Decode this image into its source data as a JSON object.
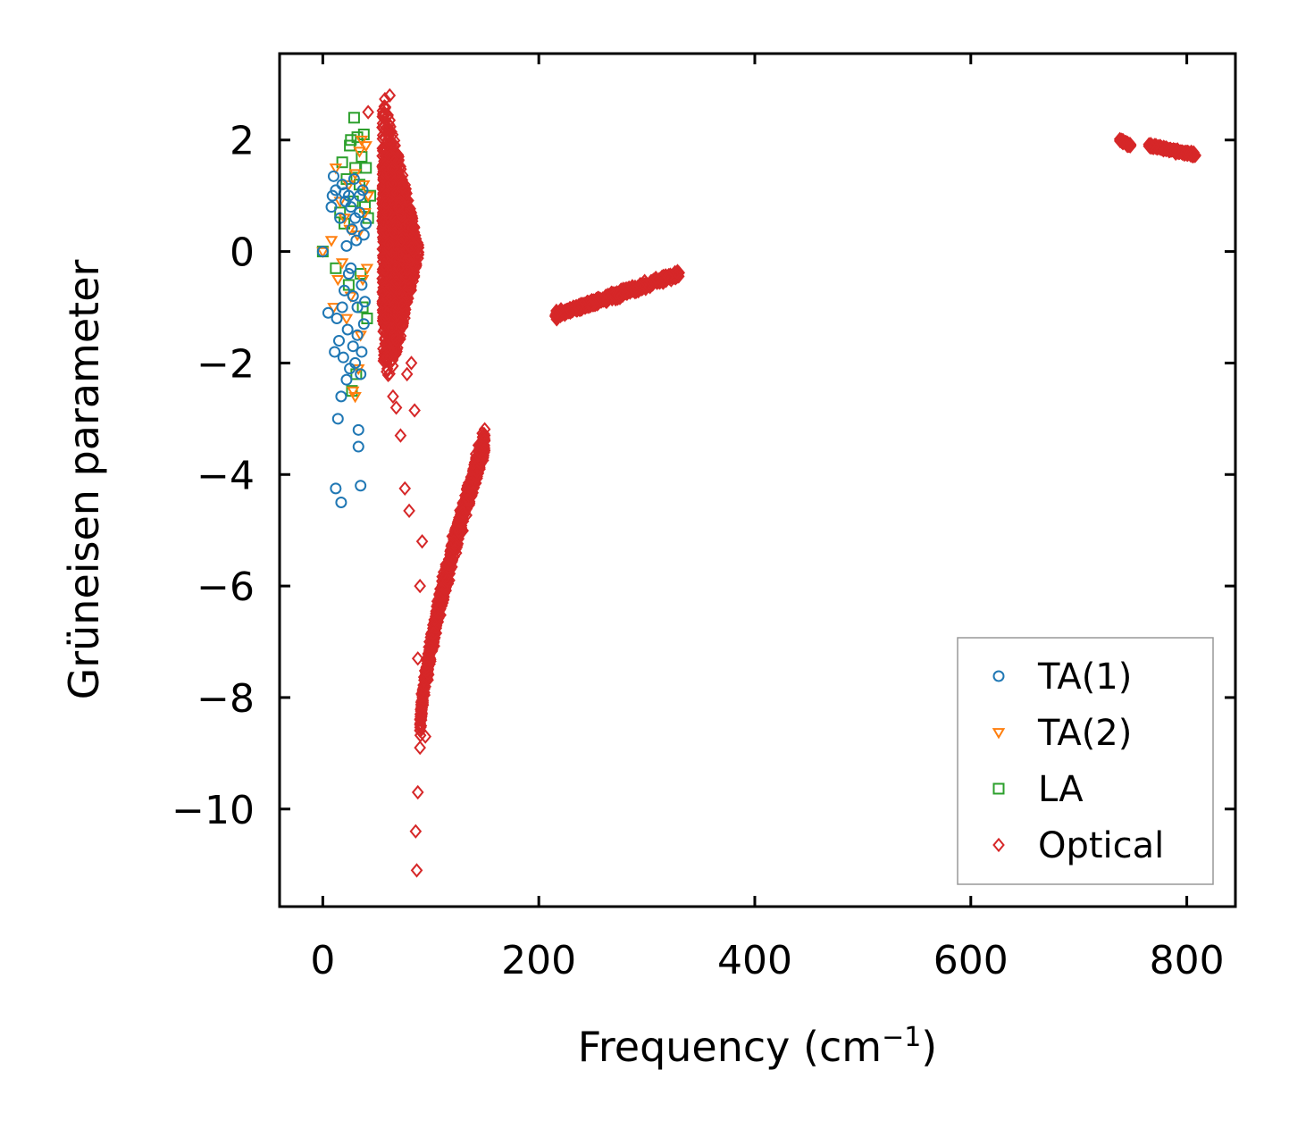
{
  "chart_data": {
    "type": "scatter",
    "title": "",
    "xlabel": "Frequency (cm",
    "xlabel_sup": "−1",
    "xlabel_close": ")",
    "ylabel": "Grüneisen parameter",
    "xlim": [
      -40,
      845
    ],
    "ylim": [
      -11.75,
      3.55
    ],
    "xticks": [
      {
        "value": 0,
        "label": "0"
      },
      {
        "value": 200,
        "label": "200"
      },
      {
        "value": 400,
        "label": "400"
      },
      {
        "value": 600,
        "label": "600"
      },
      {
        "value": 800,
        "label": "800"
      }
    ],
    "yticks": [
      {
        "value": 2,
        "label": "2"
      },
      {
        "value": 0,
        "label": "0"
      },
      {
        "value": -2,
        "label": "−2"
      },
      {
        "value": -4,
        "label": "−4"
      },
      {
        "value": -6,
        "label": "−6"
      },
      {
        "value": -8,
        "label": "−8"
      },
      {
        "value": -10,
        "label": "−10"
      }
    ],
    "legend_position": "lower-right",
    "series": [
      {
        "name": "TA(1)",
        "marker": "circle",
        "color": "#1f77b4",
        "points": [
          [
            0,
            0
          ],
          [
            5,
            -1.1
          ],
          [
            8,
            0.8
          ],
          [
            9,
            1.0
          ],
          [
            10,
            1.35
          ],
          [
            11,
            -1.8
          ],
          [
            12,
            -4.25
          ],
          [
            12,
            1.1
          ],
          [
            13,
            -1.2
          ],
          [
            14,
            -3.0
          ],
          [
            15,
            -1.6
          ],
          [
            16,
            0.6
          ],
          [
            17,
            -2.6
          ],
          [
            17,
            -4.5
          ],
          [
            18,
            1.2
          ],
          [
            19,
            -1.9
          ],
          [
            20,
            -0.7
          ],
          [
            21,
            0.9
          ],
          [
            22,
            -2.3
          ],
          [
            23,
            -1.4
          ],
          [
            24,
            1.0
          ],
          [
            25,
            -2.1
          ],
          [
            26,
            -0.3
          ],
          [
            27,
            0.4
          ],
          [
            28,
            -1.7
          ],
          [
            29,
            1.3
          ],
          [
            30,
            -2.0
          ],
          [
            31,
            0.2
          ],
          [
            32,
            -1.0
          ],
          [
            33,
            -3.2
          ],
          [
            33,
            -3.5
          ],
          [
            34,
            0.7
          ],
          [
            35,
            -4.2
          ],
          [
            35,
            -2.2
          ],
          [
            36,
            -0.6
          ],
          [
            37,
            1.1
          ],
          [
            38,
            -1.3
          ],
          [
            38,
            0.3
          ],
          [
            39,
            -0.9
          ],
          [
            40,
            0.5
          ],
          [
            22,
            0.1
          ],
          [
            24,
            -0.4
          ],
          [
            26,
            0.8
          ],
          [
            28,
            -0.8
          ],
          [
            30,
            0.6
          ],
          [
            32,
            -1.5
          ],
          [
            36,
            -1.8
          ],
          [
            34,
            1.0
          ],
          [
            20,
            1.05
          ],
          [
            18,
            -1.0
          ]
        ]
      },
      {
        "name": "TA(2)",
        "marker": "triangle-down",
        "color": "#ff7f0e",
        "points": [
          [
            0,
            0
          ],
          [
            8,
            0.2
          ],
          [
            10,
            -1.0
          ],
          [
            12,
            1.5
          ],
          [
            14,
            -0.5
          ],
          [
            16,
            0.9
          ],
          [
            18,
            -0.2
          ],
          [
            20,
            0.6
          ],
          [
            22,
            -1.2
          ],
          [
            24,
            1.2
          ],
          [
            26,
            -0.8
          ],
          [
            28,
            -2.5
          ],
          [
            30,
            -2.6
          ],
          [
            30,
            1.4
          ],
          [
            32,
            0.3
          ],
          [
            34,
            1.8
          ],
          [
            35,
            -1.5
          ],
          [
            36,
            2.0
          ],
          [
            37,
            -0.5
          ],
          [
            38,
            1.2
          ],
          [
            39,
            0.7
          ],
          [
            40,
            1.9
          ],
          [
            41,
            -0.3
          ],
          [
            42,
            1.0
          ],
          [
            33,
            -2.1
          ],
          [
            25,
            0.4
          ]
        ]
      },
      {
        "name": "LA",
        "marker": "square",
        "color": "#2ca02c",
        "points": [
          [
            0,
            0
          ],
          [
            12,
            -0.3
          ],
          [
            16,
            0.7
          ],
          [
            18,
            1.6
          ],
          [
            20,
            0.5
          ],
          [
            22,
            1.3
          ],
          [
            24,
            -0.6
          ],
          [
            25,
            1.9
          ],
          [
            26,
            2.0
          ],
          [
            28,
            0.9
          ],
          [
            29,
            2.4
          ],
          [
            30,
            1.5
          ],
          [
            32,
            2.05
          ],
          [
            34,
            1.2
          ],
          [
            35,
            -0.4
          ],
          [
            36,
            1.7
          ],
          [
            38,
            2.1
          ],
          [
            39,
            0.8
          ],
          [
            40,
            1.5
          ],
          [
            41,
            -1.2
          ],
          [
            42,
            0.6
          ],
          [
            44,
            1.0
          ],
          [
            37,
            -1.0
          ],
          [
            31,
            -2.2
          ],
          [
            27,
            -2.5
          ]
        ]
      },
      {
        "name": "Optical",
        "marker": "diamond",
        "color": "#d62728",
        "clusters": [
          {
            "type": "band",
            "x": [
              40,
              90
            ],
            "y": [
              -2.4,
              2.7
            ],
            "density": 1400
          },
          {
            "type": "line",
            "x": [
              [
                90,
                -8.6
              ],
              [
                150,
                -3.4
              ]
            ],
            "spread": 0.35,
            "density": 900
          },
          {
            "type": "line",
            "x": [
              [
                215,
                -1.15
              ],
              [
                330,
                -0.4
              ]
            ],
            "spread": 0.09,
            "density": 500
          },
          {
            "type": "line",
            "x": [
              [
                738,
                2.0
              ],
              [
                748,
                1.9
              ]
            ],
            "spread": 0.04,
            "density": 60
          },
          {
            "type": "line",
            "x": [
              [
                765,
                1.9
              ],
              [
                808,
                1.73
              ]
            ],
            "spread": 0.05,
            "density": 200
          }
        ],
        "outliers": [
          [
            42,
            2.5
          ],
          [
            62,
            2.8
          ],
          [
            60,
            -1.9
          ],
          [
            65,
            -2.6
          ],
          [
            68,
            -2.8
          ],
          [
            72,
            -3.3
          ],
          [
            76,
            -4.25
          ],
          [
            80,
            -4.65
          ],
          [
            85,
            -2.85
          ],
          [
            88,
            -7.3
          ],
          [
            88,
            -9.7
          ],
          [
            86,
            -10.4
          ],
          [
            87,
            -11.1
          ],
          [
            90,
            -8.9
          ],
          [
            92,
            -5.2
          ],
          [
            95,
            -8.7
          ],
          [
            90,
            -6.0
          ],
          [
            58,
            -1.2
          ],
          [
            82,
            -2.0
          ],
          [
            78,
            -2.2
          ]
        ]
      }
    ]
  }
}
